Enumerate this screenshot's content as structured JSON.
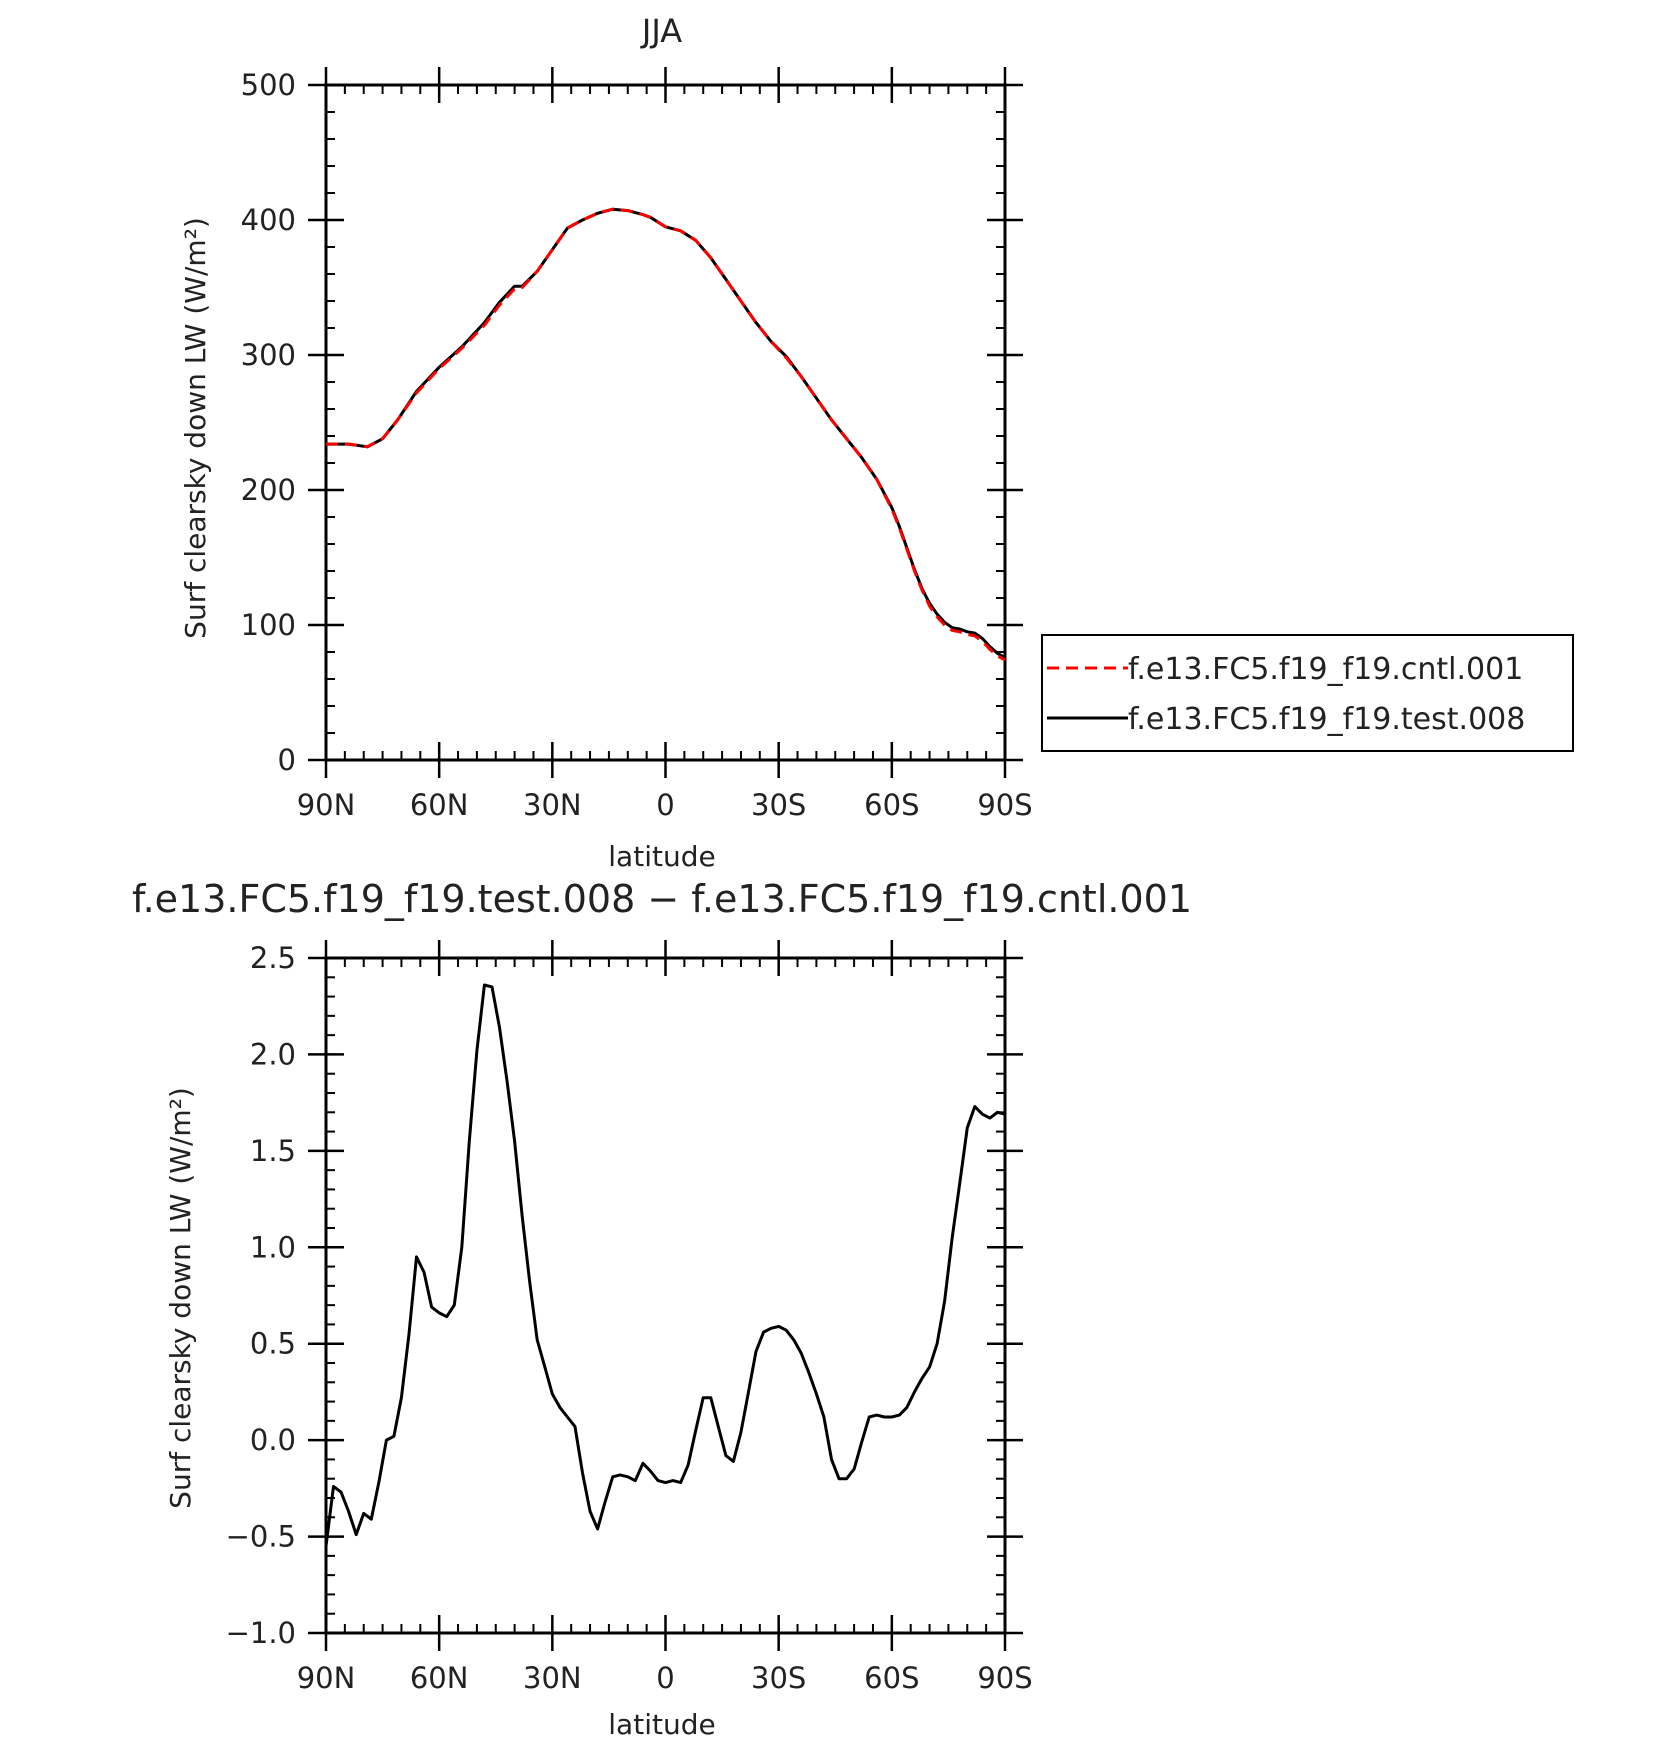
{
  "chart_data": [
    {
      "type": "line",
      "title": "JJA",
      "xlabel": "latitude",
      "ylabel": "Surf clearsky down LW (W/m²)",
      "xlim": [
        90,
        -90
      ],
      "ylim": [
        0,
        500
      ],
      "x_ticks": [
        {
          "value": 90,
          "label": "90N"
        },
        {
          "value": 60,
          "label": "60N"
        },
        {
          "value": 30,
          "label": "30N"
        },
        {
          "value": 0,
          "label": "0"
        },
        {
          "value": -30,
          "label": "30S"
        },
        {
          "value": -60,
          "label": "60S"
        },
        {
          "value": -90,
          "label": "90S"
        }
      ],
      "y_ticks": [
        {
          "value": 0,
          "label": "0"
        },
        {
          "value": 100,
          "label": "100"
        },
        {
          "value": 200,
          "label": "200"
        },
        {
          "value": 300,
          "label": "300"
        },
        {
          "value": 400,
          "label": "400"
        },
        {
          "value": 500,
          "label": "500"
        }
      ],
      "legend_position": "right",
      "grid": false,
      "x": [
        90,
        84,
        79,
        75,
        71,
        66,
        60,
        54,
        48,
        44,
        40,
        38,
        34,
        30,
        26,
        22,
        18,
        14,
        10,
        6,
        4,
        0,
        -4,
        -8,
        -12,
        -16,
        -20,
        -24,
        -28,
        -32,
        -36,
        -40,
        -44,
        -48,
        -52,
        -56,
        -60,
        -62,
        -64,
        -66,
        -68,
        -70,
        -72,
        -74,
        -76,
        -78,
        -80,
        -82,
        -84,
        -86,
        -88,
        -90
      ],
      "series": [
        {
          "name": "f.e13.FC5.f19_f19.cntl.001",
          "color": "#ff0000",
          "dash": "dashed",
          "values": [
            234,
            234,
            232,
            238,
            252,
            272,
            290,
            305,
            322,
            337,
            349,
            350,
            362,
            378,
            394,
            400,
            405,
            408,
            407,
            404,
            402,
            395,
            392,
            385,
            372,
            356,
            340,
            324,
            310,
            298,
            284,
            268,
            252,
            238,
            224,
            208,
            186,
            172,
            156,
            140,
            126,
            114,
            106,
            100,
            96,
            95,
            93,
            92,
            88,
            82,
            77,
            74
          ]
        },
        {
          "name": "f.e13.FC5.f19_f19.test.008",
          "color": "#000000",
          "dash": "solid",
          "values": [
            234,
            234,
            232,
            238,
            252,
            273,
            291,
            306,
            324,
            339,
            351,
            351,
            362,
            378,
            394,
            400,
            405,
            408,
            407,
            404,
            402,
            395,
            392,
            385,
            372,
            356,
            340,
            324,
            310,
            299,
            284,
            268,
            252,
            238,
            224,
            208,
            187,
            173,
            157,
            141,
            127,
            116,
            108,
            102,
            98,
            97,
            95,
            94,
            90,
            84,
            79,
            76
          ]
        }
      ]
    },
    {
      "type": "line",
      "title": "f.e13.FC5.f19_f19.test.008 − f.e13.FC5.f19_f19.cntl.001",
      "xlabel": "latitude",
      "ylabel": "Surf clearsky down LW (W/m²)",
      "xlim": [
        90,
        -90
      ],
      "ylim": [
        -1.0,
        2.5
      ],
      "x_ticks": [
        {
          "value": 90,
          "label": "90N"
        },
        {
          "value": 60,
          "label": "60N"
        },
        {
          "value": 30,
          "label": "30N"
        },
        {
          "value": 0,
          "label": "0"
        },
        {
          "value": -30,
          "label": "30S"
        },
        {
          "value": -60,
          "label": "60S"
        },
        {
          "value": -90,
          "label": "90S"
        }
      ],
      "y_ticks": [
        {
          "value": -1.0,
          "label": "−1.0"
        },
        {
          "value": -0.5,
          "label": "−0.5"
        },
        {
          "value": 0.0,
          "label": "0.0"
        },
        {
          "value": 0.5,
          "label": "0.5"
        },
        {
          "value": 1.0,
          "label": "1.0"
        },
        {
          "value": 1.5,
          "label": "1.5"
        },
        {
          "value": 2.0,
          "label": "2.0"
        },
        {
          "value": 2.5,
          "label": "2.5"
        }
      ],
      "grid": false,
      "x": [
        90,
        88,
        86,
        84,
        82,
        80,
        78,
        76,
        74,
        72,
        70,
        68,
        66,
        64,
        62,
        60,
        58,
        56,
        54,
        52,
        50,
        48,
        46,
        44,
        42,
        40,
        38,
        36,
        34,
        32,
        30,
        28,
        26,
        24,
        22,
        20,
        18,
        16,
        14,
        12,
        10,
        8,
        6,
        4,
        2,
        0,
        -2,
        -4,
        -6,
        -8,
        -10,
        -12,
        -14,
        -16,
        -18,
        -20,
        -22,
        -24,
        -26,
        -28,
        -30,
        -32,
        -34,
        -36,
        -38,
        -40,
        -42,
        -44,
        -46,
        -48,
        -50,
        -52,
        -54,
        -56,
        -58,
        -60,
        -62,
        -64,
        -66,
        -68,
        -70,
        -72,
        -74,
        -76,
        -78,
        -80,
        -82,
        -84,
        -86,
        -88,
        -90
      ],
      "series": [
        {
          "name": "",
          "color": "#000000",
          "dash": "solid",
          "values": [
            -0.55,
            -0.24,
            -0.27,
            -0.37,
            -0.49,
            -0.38,
            -0.41,
            -0.22,
            0.0,
            0.02,
            0.22,
            0.55,
            0.95,
            0.87,
            0.69,
            0.66,
            0.64,
            0.7,
            1.0,
            1.55,
            2.02,
            2.36,
            2.35,
            2.14,
            1.86,
            1.55,
            1.16,
            0.82,
            0.52,
            0.38,
            0.24,
            0.17,
            0.12,
            0.07,
            -0.17,
            -0.37,
            -0.46,
            -0.32,
            -0.19,
            -0.18,
            -0.19,
            -0.21,
            -0.12,
            -0.16,
            -0.21,
            -0.22,
            -0.21,
            -0.22,
            -0.13,
            0.05,
            0.22,
            0.22,
            0.07,
            -0.08,
            -0.11,
            0.04,
            0.25,
            0.46,
            0.56,
            0.58,
            0.59,
            0.57,
            0.52,
            0.45,
            0.35,
            0.24,
            0.12,
            -0.1,
            -0.2,
            -0.2,
            -0.15,
            -0.01,
            0.12,
            0.13,
            0.12,
            0.12,
            0.13,
            0.17,
            0.25,
            0.32,
            0.38,
            0.5,
            0.72,
            1.05,
            1.33,
            1.62,
            1.73,
            1.69,
            1.67,
            1.7,
            1.69
          ]
        }
      ]
    }
  ],
  "legend": {
    "entries": [
      {
        "label": "f.e13.FC5.f19_f19.cntl.001",
        "color": "#ff0000",
        "dash": "dashed"
      },
      {
        "label": "f.e13.FC5.f19_f19.test.008",
        "color": "#000000",
        "dash": "solid"
      }
    ]
  }
}
